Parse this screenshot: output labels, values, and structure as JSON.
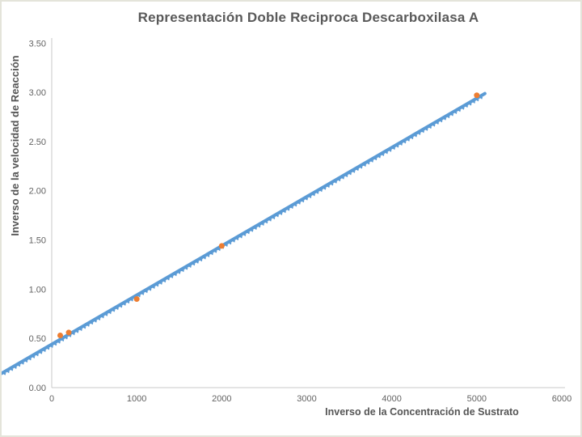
{
  "slide": {
    "background": "#ffffff",
    "border_color": "#e4e4da"
  },
  "chart_data": {
    "type": "scatter",
    "title": "Representación Doble Reciproca Descarboxilasa A",
    "xlabel": "Inverso de la Concentración de Sustrato",
    "ylabel": "Inverso de la velocidad de Reacción",
    "xlim": [
      0,
      6000
    ],
    "ylim": [
      0,
      3.5
    ],
    "x_ticks": [
      0,
      1000,
      2000,
      3000,
      4000,
      5000,
      6000
    ],
    "y_ticks": [
      0.0,
      0.5,
      1.0,
      1.5,
      2.0,
      2.5,
      3.0,
      3.5
    ],
    "y_tick_decimals": 2,
    "grid": false,
    "legend_position": "none",
    "axis_color": "#c9c9c9",
    "tick_label_color": "#636363",
    "title_color": "#595959",
    "series": [
      {
        "name": "trendline",
        "type": "line",
        "color": "#5b9bd5",
        "slope": 0.0005,
        "intercept": 0.44,
        "x_start": -600,
        "x_end": 5095,
        "marker": "dense-sawtooth"
      },
      {
        "name": "experimental-points",
        "type": "points",
        "color": "#ed7d31",
        "points": [
          [
            100,
            0.53
          ],
          [
            200,
            0.56
          ],
          [
            1000,
            0.9
          ],
          [
            2000,
            1.44
          ],
          [
            5000,
            2.97
          ]
        ]
      }
    ]
  }
}
